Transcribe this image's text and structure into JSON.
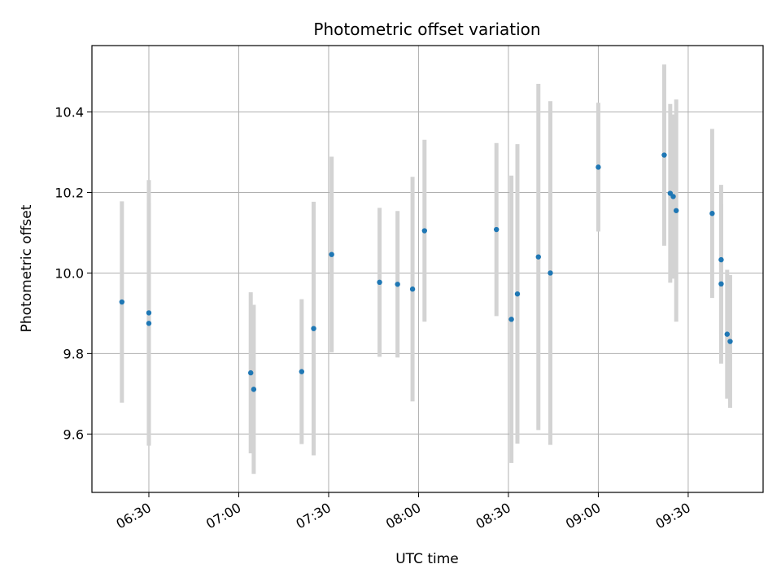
{
  "chart_data": {
    "type": "scatter",
    "title": "Photometric offset variation",
    "xlabel": "UTC time",
    "ylabel": "Photometric offset",
    "xlim": [
      "06:11",
      "09:55"
    ],
    "ylim": [
      9.455,
      10.565
    ],
    "x_ticks": [
      "06:30",
      "07:00",
      "07:30",
      "08:00",
      "08:30",
      "09:00",
      "09:30"
    ],
    "y_ticks": [
      "9.6",
      "9.8",
      "10.0",
      "10.2",
      "10.4"
    ],
    "grid": true,
    "marker_color": "#1f77b4",
    "errorbar_color": "#d3d3d3",
    "points": [
      {
        "t": "06:21",
        "y": 9.928,
        "err": 0.25
      },
      {
        "t": "06:30",
        "y": 9.875,
        "err": 0.3
      },
      {
        "t": "06:30",
        "y": 9.901,
        "err": 0.33
      },
      {
        "t": "07:04",
        "y": 9.752,
        "err": 0.2
      },
      {
        "t": "07:05",
        "y": 9.711,
        "err": 0.21
      },
      {
        "t": "07:21",
        "y": 9.755,
        "err": 0.18
      },
      {
        "t": "07:25",
        "y": 9.862,
        "err": 0.315
      },
      {
        "t": "07:31",
        "y": 10.046,
        "err": 0.243
      },
      {
        "t": "07:47",
        "y": 9.977,
        "err": 0.185
      },
      {
        "t": "07:53",
        "y": 9.972,
        "err": 0.182
      },
      {
        "t": "07:58",
        "y": 9.96,
        "err": 0.279
      },
      {
        "t": "08:02",
        "y": 10.105,
        "err": 0.226
      },
      {
        "t": "08:26",
        "y": 10.108,
        "err": 0.215
      },
      {
        "t": "08:31",
        "y": 9.885,
        "err": 0.357
      },
      {
        "t": "08:33",
        "y": 9.948,
        "err": 0.372
      },
      {
        "t": "08:40",
        "y": 10.04,
        "err": 0.43
      },
      {
        "t": "08:44",
        "y": 10.0,
        "err": 0.427
      },
      {
        "t": "09:00",
        "y": 10.263,
        "err": 0.16
      },
      {
        "t": "09:22",
        "y": 10.293,
        "err": 0.225
      },
      {
        "t": "09:24",
        "y": 10.198,
        "err": 0.222
      },
      {
        "t": "09:25",
        "y": 10.19,
        "err": 0.204
      },
      {
        "t": "09:26",
        "y": 10.155,
        "err": 0.276
      },
      {
        "t": "09:38",
        "y": 10.148,
        "err": 0.21
      },
      {
        "t": "09:41",
        "y": 10.033,
        "err": 0.186
      },
      {
        "t": "09:41",
        "y": 9.973,
        "err": 0.198
      },
      {
        "t": "09:43",
        "y": 9.848,
        "err": 0.16
      },
      {
        "t": "09:44",
        "y": 9.83,
        "err": 0.165
      }
    ]
  }
}
